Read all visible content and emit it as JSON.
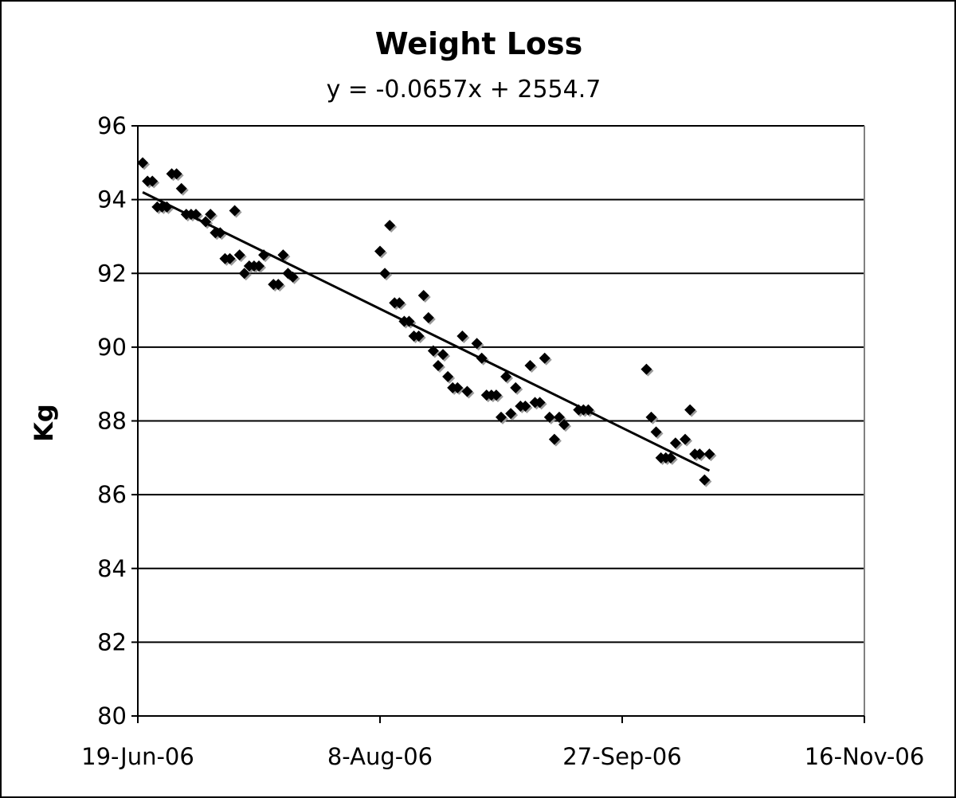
{
  "chart_data": {
    "type": "scatter",
    "title": "Weight Loss",
    "subtitle": "y = -0.0657x + 2554.7",
    "xlabel": "",
    "ylabel": "Kg",
    "xlim": [
      "2006-06-19",
      "2006-11-16"
    ],
    "ylim": [
      80,
      96
    ],
    "yticks": [
      "96",
      "94",
      "92",
      "90",
      "88",
      "86",
      "84",
      "82",
      "80"
    ],
    "xticks": [
      {
        "date": "2006-06-19",
        "label": "19-Jun-06"
      },
      {
        "date": "2006-08-08",
        "label": "8-Aug-06"
      },
      {
        "date": "2006-09-27",
        "label": "27-Sep-06"
      },
      {
        "date": "2006-11-16",
        "label": "16-Nov-06"
      }
    ],
    "grid": true,
    "marker_color": "#000000",
    "series": [
      {
        "points": [
          [
            "2006-06-20",
            95.0
          ],
          [
            "2006-06-21",
            94.5
          ],
          [
            "2006-06-22",
            94.5
          ],
          [
            "2006-06-23",
            93.8
          ],
          [
            "2006-06-24",
            93.8
          ],
          [
            "2006-06-25",
            93.8
          ],
          [
            "2006-06-26",
            94.7
          ],
          [
            "2006-06-27",
            94.7
          ],
          [
            "2006-06-28",
            94.3
          ],
          [
            "2006-06-29",
            93.6
          ],
          [
            "2006-06-30",
            93.6
          ],
          [
            "2006-07-01",
            93.6
          ],
          [
            "2006-07-03",
            93.4
          ],
          [
            "2006-07-04",
            93.6
          ],
          [
            "2006-07-05",
            93.1
          ],
          [
            "2006-07-06",
            93.1
          ],
          [
            "2006-07-07",
            92.4
          ],
          [
            "2006-07-08",
            92.4
          ],
          [
            "2006-07-09",
            93.7
          ],
          [
            "2006-07-10",
            92.5
          ],
          [
            "2006-07-11",
            92.0
          ],
          [
            "2006-07-12",
            92.2
          ],
          [
            "2006-07-13",
            92.2
          ],
          [
            "2006-07-14",
            92.2
          ],
          [
            "2006-07-15",
            92.5
          ],
          [
            "2006-07-17",
            91.7
          ],
          [
            "2006-07-18",
            91.7
          ],
          [
            "2006-07-19",
            92.5
          ],
          [
            "2006-07-20",
            92.0
          ],
          [
            "2006-07-21",
            91.9
          ],
          [
            "2006-08-08",
            92.6
          ],
          [
            "2006-08-09",
            92.0
          ],
          [
            "2006-08-10",
            93.3
          ],
          [
            "2006-08-11",
            91.2
          ],
          [
            "2006-08-12",
            91.2
          ],
          [
            "2006-08-13",
            90.7
          ],
          [
            "2006-08-14",
            90.7
          ],
          [
            "2006-08-15",
            90.3
          ],
          [
            "2006-08-16",
            90.3
          ],
          [
            "2006-08-17",
            91.4
          ],
          [
            "2006-08-18",
            90.8
          ],
          [
            "2006-08-19",
            89.9
          ],
          [
            "2006-08-20",
            89.5
          ],
          [
            "2006-08-21",
            89.8
          ],
          [
            "2006-08-22",
            89.2
          ],
          [
            "2006-08-23",
            88.9
          ],
          [
            "2006-08-24",
            88.9
          ],
          [
            "2006-08-25",
            90.3
          ],
          [
            "2006-08-26",
            88.8
          ],
          [
            "2006-08-28",
            90.1
          ],
          [
            "2006-08-29",
            89.7
          ],
          [
            "2006-08-30",
            88.7
          ],
          [
            "2006-08-31",
            88.7
          ],
          [
            "2006-09-01",
            88.7
          ],
          [
            "2006-09-02",
            88.1
          ],
          [
            "2006-09-03",
            89.2
          ],
          [
            "2006-09-04",
            88.2
          ],
          [
            "2006-09-05",
            88.9
          ],
          [
            "2006-09-06",
            88.4
          ],
          [
            "2006-09-07",
            88.4
          ],
          [
            "2006-09-08",
            89.5
          ],
          [
            "2006-09-09",
            88.5
          ],
          [
            "2006-09-10",
            88.5
          ],
          [
            "2006-09-11",
            89.7
          ],
          [
            "2006-09-12",
            88.1
          ],
          [
            "2006-09-13",
            87.5
          ],
          [
            "2006-09-14",
            88.1
          ],
          [
            "2006-09-15",
            87.9
          ],
          [
            "2006-09-18",
            88.3
          ],
          [
            "2006-09-19",
            88.3
          ],
          [
            "2006-09-20",
            88.3
          ],
          [
            "2006-10-02",
            89.4
          ],
          [
            "2006-10-03",
            88.1
          ],
          [
            "2006-10-04",
            87.7
          ],
          [
            "2006-10-05",
            87.0
          ],
          [
            "2006-10-06",
            87.0
          ],
          [
            "2006-10-07",
            87.0
          ],
          [
            "2006-10-08",
            87.4
          ],
          [
            "2006-10-10",
            87.5
          ],
          [
            "2006-10-11",
            88.3
          ],
          [
            "2006-10-12",
            87.1
          ],
          [
            "2006-10-13",
            87.1
          ],
          [
            "2006-10-14",
            86.4
          ],
          [
            "2006-10-15",
            87.1
          ]
        ]
      }
    ],
    "trendline": {
      "start": [
        "2006-06-20",
        94.2
      ],
      "end": [
        "2006-10-15",
        86.65
      ]
    }
  }
}
